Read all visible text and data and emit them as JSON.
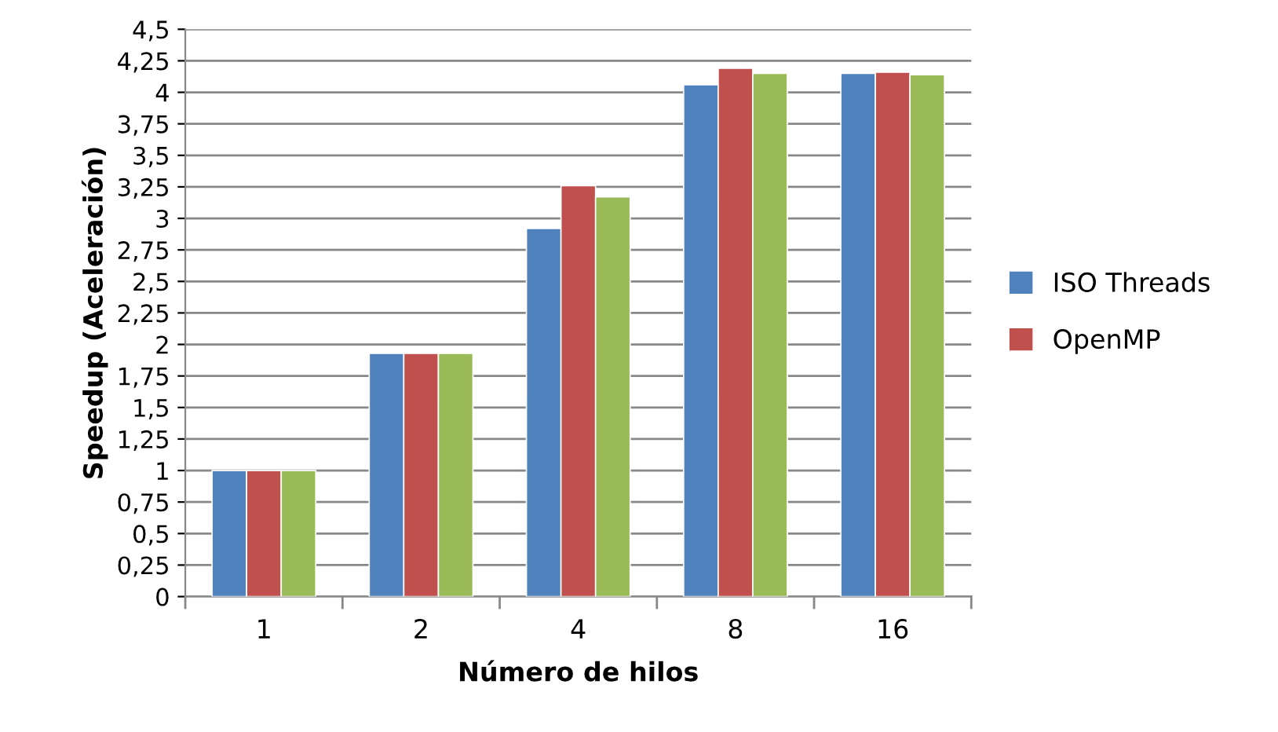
{
  "chart_data": {
    "type": "bar",
    "xlabel": "Número de hilos",
    "ylabel": "Speedup (Aceleración)",
    "categories": [
      "1",
      "2",
      "4",
      "8",
      "16"
    ],
    "series": [
      {
        "name": "ISO Threads",
        "color": "#4f81bd",
        "values": [
          1,
          1.93,
          2.92,
          4.06,
          4.15
        ]
      },
      {
        "name": "OpenMP",
        "color": "#c0504d",
        "values": [
          1,
          1.93,
          3.26,
          4.19,
          4.16
        ]
      },
      {
        "color": "#9bbb59",
        "values": [
          1,
          1.93,
          3.17,
          4.15,
          4.14
        ]
      }
    ],
    "ylim": [
      0,
      4.5
    ],
    "yticks": [
      0,
      {
        "value": 0.25,
        "label": "0,25"
      },
      {
        "value": 0.5,
        "label": "0,5"
      },
      {
        "value": 0.75,
        "label": "0,75"
      },
      1,
      {
        "value": 1.25,
        "label": "1,25"
      },
      {
        "value": 1.5,
        "label": "1,5"
      },
      {
        "value": 1.75,
        "label": "1,75"
      },
      2,
      {
        "value": 2.25,
        "label": "2,25"
      },
      {
        "value": 2.5,
        "label": "2,5"
      },
      {
        "value": 2.75,
        "label": "2,75"
      },
      3,
      {
        "value": 3.25,
        "label": "3,25"
      },
      {
        "value": 3.5,
        "label": "3,5"
      },
      {
        "value": 3.75,
        "label": "3,75"
      },
      4,
      {
        "value": 4.25,
        "label": "4,25"
      },
      {
        "value": 4.5,
        "label": "4,5"
      }
    ],
    "grid": "y",
    "legend": "right"
  }
}
